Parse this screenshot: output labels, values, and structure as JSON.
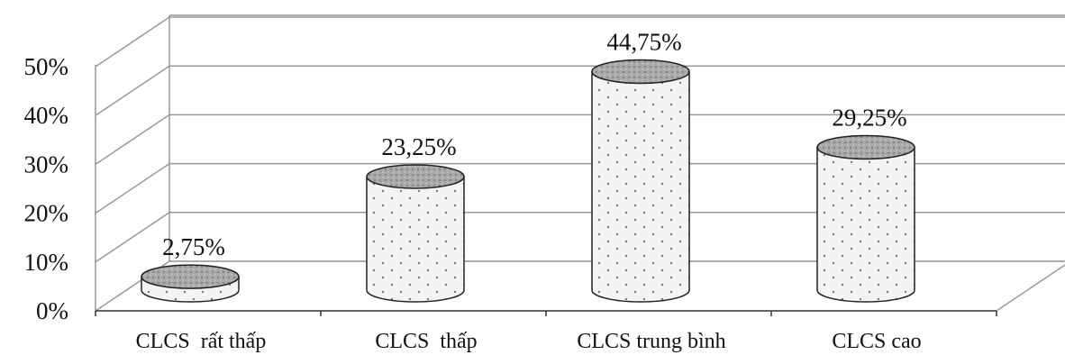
{
  "chart_data": {
    "type": "bar",
    "bar_shape": "cylinder",
    "categories": [
      "CLCS  rất thấp",
      "CLCS  thấp",
      "CLCS trung bình",
      "CLCS cao"
    ],
    "values": [
      2.75,
      23.25,
      44.75,
      29.25
    ],
    "data_labels": [
      "2,75%",
      "23,25%",
      "44,75%",
      "29,25%"
    ],
    "y_ticks": [
      0,
      10,
      20,
      30,
      40,
      50
    ],
    "y_tick_labels": [
      "0%",
      "10%",
      "20%",
      "30%",
      "40%",
      "50%"
    ],
    "ylim": [
      0,
      50
    ],
    "grid": true,
    "three_d": true,
    "legend": "none",
    "colors": {
      "bar_body": "#f2f2f2",
      "bar_top": "#a8a8a8",
      "stipple": "#777777",
      "grid": "#999999",
      "axis": "#333333"
    }
  }
}
